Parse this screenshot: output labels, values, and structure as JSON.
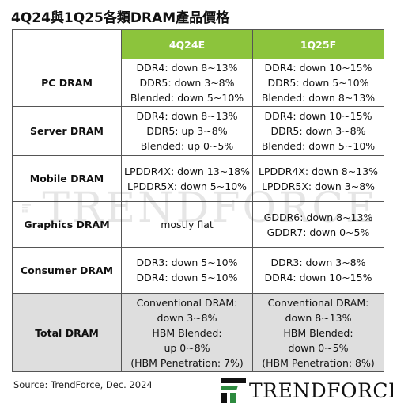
{
  "title": "4Q24與1Q25各類DRAM產品價格",
  "table": {
    "headers": [
      "",
      "4Q24E",
      "1Q25F"
    ],
    "rows": [
      {
        "label": "PC DRAM",
        "q4": [
          "DDR4: down 8~13%",
          "DDR5: down 3~8%",
          "Blended: down 5~10%"
        ],
        "q1": [
          "DDR4: down 10~15%",
          "DDR5: down 5~10%",
          "Blended: down 8~13%"
        ]
      },
      {
        "label": "Server DRAM",
        "q4": [
          "DDR4: down 8~13%",
          "DDR5: up 3~8%",
          "Blended: up 0~5%"
        ],
        "q1": [
          "DDR4: down 10~15%",
          "DDR5: down 3~8%",
          "Blended: down 5~10%"
        ]
      },
      {
        "label": "Mobile DRAM",
        "q4": [
          "LPDDR4X: down 13~18%",
          "LPDDR5X: down 5~10%"
        ],
        "q1": [
          "LPDDR4X: down 8~13%",
          "LPDDR5X: down 3~8%"
        ]
      },
      {
        "label": "Graphics DRAM",
        "q4": [
          "mostly flat"
        ],
        "q1": [
          "GDDR6: down 8~13%",
          "GDDR7: down 0~5%"
        ]
      },
      {
        "label": "Consumer DRAM",
        "q4": [
          "DDR3: down 5~10%",
          "DDR4: down 5~10%"
        ],
        "q1": [
          "DDR3: down 3~8%",
          "DDR4: down 10~15%"
        ]
      },
      {
        "label": "Total DRAM",
        "q4": [
          "Conventional DRAM:",
          "down 3~8%",
          "HBM Blended:",
          "up 0~8%",
          "(HBM Penetration: 7%)"
        ],
        "q1": [
          "Conventional DRAM:",
          "down 8~13%",
          "HBM Blended:",
          "down 0~5%",
          "(HBM Penetration: 8%)"
        ]
      }
    ]
  },
  "watermark": "TRENDFORCE",
  "source": "Source: TrendForce, Dec. 2024",
  "logo": {
    "text": "TRENDFORCE",
    "icon": "trendforce-logo-icon"
  },
  "colors": {
    "header_bg": "#8cc43c",
    "total_row_bg": "#dedede",
    "logo_green": "#2d8a3e"
  }
}
